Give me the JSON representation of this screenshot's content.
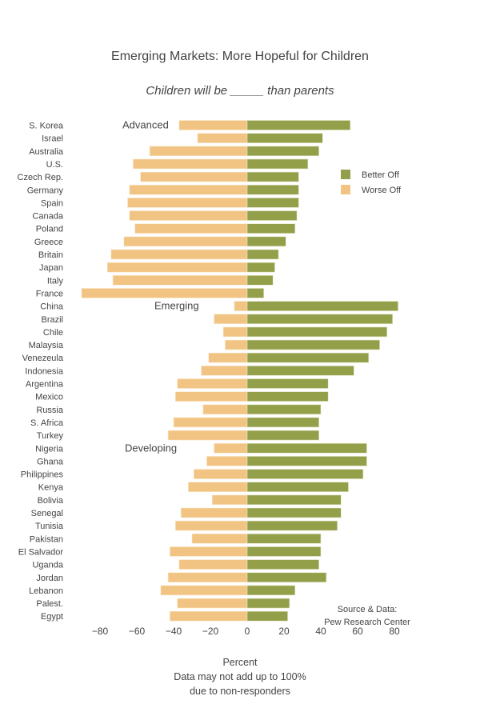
{
  "chart_data": {
    "type": "bar",
    "orientation": "horizontal",
    "title": "Emerging Markets: More Hopeful for Children",
    "subtitle": "Children will be _____ than parents",
    "xlabel": "Percent",
    "notes": [
      "Data may not add up to 100%",
      "due to non-responders"
    ],
    "source": [
      "Source & Data:",
      "Pew Research Center"
    ],
    "xlim": [
      -90,
      90
    ],
    "xticks": [
      -80,
      -60,
      -40,
      -20,
      0,
      20,
      40,
      60,
      80
    ],
    "xtick_labels": [
      "−80",
      "−60",
      "−40",
      "−20",
      "0",
      "20",
      "40",
      "60",
      "80"
    ],
    "grid": false,
    "legend_position": "right",
    "colors": {
      "Better Off": "#949f4a",
      "Worse Off": "#f1c483"
    },
    "groups": [
      {
        "label": "Advanced",
        "first_category": "S. Korea"
      },
      {
        "label": "Emerging",
        "first_category": "China"
      },
      {
        "label": "Developing",
        "first_category": "Nigeria"
      }
    ],
    "categories": [
      "S. Korea",
      "Israel",
      "Australia",
      "U.S.",
      "Czech Rep.",
      "Germany",
      "Spain",
      "Canada",
      "Poland",
      "Greece",
      "Britain",
      "Japan",
      "Italy",
      "France",
      "China",
      "Brazil",
      "Chile",
      "Malaysia",
      "Venezeula",
      "Indonesia",
      "Argentina",
      "Mexico",
      "Russia",
      "S. Africa",
      "Turkey",
      "Nigeria",
      "Ghana",
      "Philippines",
      "Kenya",
      "Bolivia",
      "Senegal",
      "Tunisia",
      "Pakistan",
      "El Salvador",
      "Uganda",
      "Jordan",
      "Lebanon",
      "Palest.",
      "Egypt"
    ],
    "series": [
      {
        "name": "Better Off",
        "values": [
          56,
          41,
          39,
          33,
          28,
          28,
          28,
          27,
          26,
          21,
          17,
          15,
          14,
          9,
          82,
          79,
          76,
          72,
          66,
          58,
          44,
          44,
          40,
          39,
          39,
          65,
          65,
          63,
          55,
          51,
          51,
          49,
          40,
          40,
          39,
          43,
          26,
          23,
          22
        ]
      },
      {
        "name": "Worse Off",
        "values": [
          -37,
          -27,
          -53,
          -62,
          -58,
          -64,
          -65,
          -64,
          -61,
          -67,
          -74,
          -76,
          -73,
          -90,
          -7,
          -18,
          -13,
          -12,
          -21,
          -25,
          -38,
          -39,
          -24,
          -40,
          -43,
          -18,
          -22,
          -29,
          -32,
          -19,
          -36,
          -39,
          -30,
          -42,
          -37,
          -43,
          -47,
          -38,
          -42
        ]
      }
    ]
  }
}
